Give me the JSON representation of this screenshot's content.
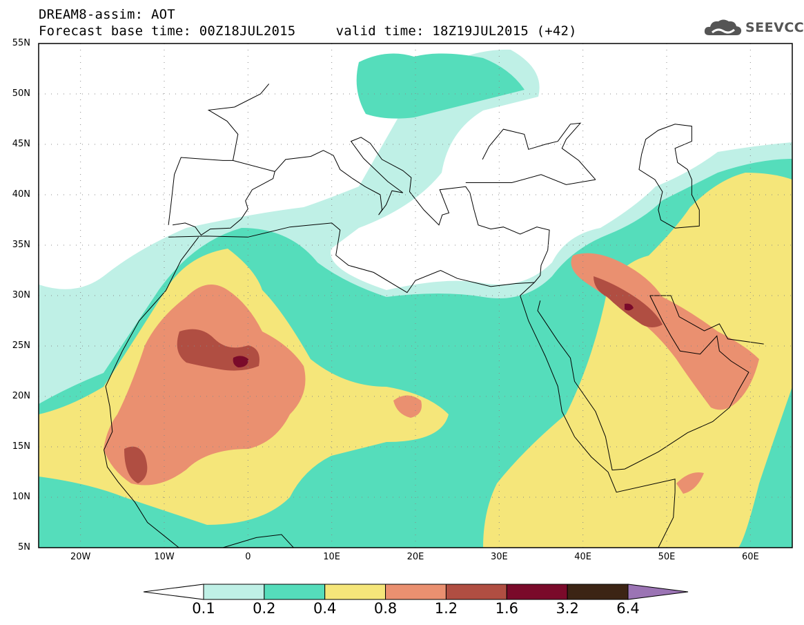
{
  "header": {
    "line1": "DREAM8-assim: AOT",
    "line2": "Forecast base time: 00Z18JUL2015     valid time: 18Z19JUL2015 (+42)"
  },
  "logo": {
    "text": "SEEVCCC",
    "icon": "cloud-icon",
    "color": "#555555"
  },
  "map": {
    "lon_range": [
      -25,
      65
    ],
    "lat_range": [
      5,
      55
    ],
    "lat_labels": [
      "5N",
      "10N",
      "15N",
      "20N",
      "25N",
      "30N",
      "35N",
      "40N",
      "45N",
      "50N",
      "55N"
    ],
    "lon_labels": [
      "20W",
      "10W",
      "0",
      "10E",
      "20E",
      "30E",
      "40E",
      "50E",
      "60E"
    ]
  },
  "colorbar": {
    "levels": [
      "0.1",
      "0.2",
      "0.4",
      "0.8",
      "1.2",
      "1.6",
      "3.2",
      "6.4"
    ],
    "colors": [
      "#ffffff",
      "#bff0e6",
      "#55ddbb",
      "#f5e67a",
      "#ea9070",
      "#b04e42",
      "#7a0a2a",
      "#3c2414",
      "#9b74b4"
    ]
  }
}
